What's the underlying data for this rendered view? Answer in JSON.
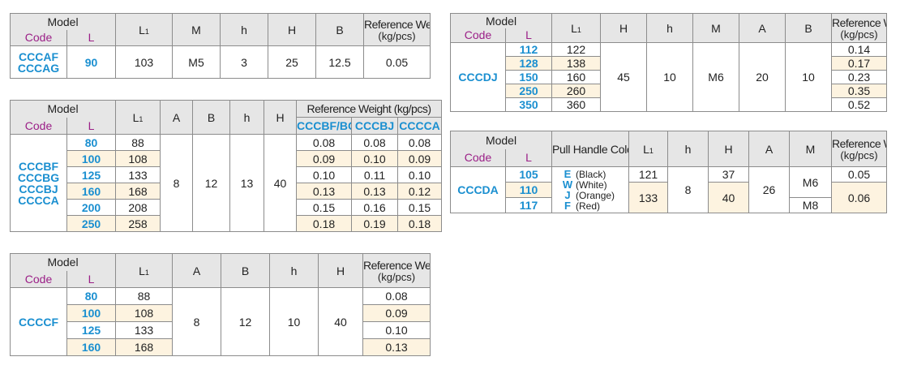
{
  "labels": {
    "model": "Model",
    "code": "Code",
    "l": "L",
    "l1": "L",
    "l1_sub": "1",
    "ref_weight": "Reference Weight",
    "unit": "(kg/pcs)",
    "ref_weight_unit_combined": "Reference Weight (kg/pcs)",
    "pull_handle_colors": "Pull Handle Colors"
  },
  "table1": {
    "headers": [
      "M",
      "h",
      "H",
      "B"
    ],
    "code": [
      "CCCAF",
      "CCCAG"
    ],
    "row": {
      "L": "90",
      "L1": "103",
      "M": "M5",
      "h": "3",
      "H": "25",
      "B": "12.5",
      "weight": "0.05"
    }
  },
  "table2": {
    "headers": [
      "A",
      "B",
      "h",
      "H"
    ],
    "weight_codes": [
      "CCCBF/BG",
      "CCCBJ",
      "CCCCA"
    ],
    "code": [
      "CCCBF",
      "CCCBG",
      "CCCBJ",
      "CCCCA"
    ],
    "shared": {
      "A": "8",
      "B": "12",
      "h": "13",
      "H": "40"
    },
    "rows": [
      {
        "L": "80",
        "L1": "88",
        "w": [
          "0.08",
          "0.08",
          "0.08"
        ]
      },
      {
        "L": "100",
        "L1": "108",
        "w": [
          "0.09",
          "0.10",
          "0.09"
        ]
      },
      {
        "L": "125",
        "L1": "133",
        "w": [
          "0.10",
          "0.11",
          "0.10"
        ]
      },
      {
        "L": "160",
        "L1": "168",
        "w": [
          "0.13",
          "0.13",
          "0.12"
        ]
      },
      {
        "L": "200",
        "L1": "208",
        "w": [
          "0.15",
          "0.16",
          "0.15"
        ]
      },
      {
        "L": "250",
        "L1": "258",
        "w": [
          "0.18",
          "0.19",
          "0.18"
        ]
      }
    ]
  },
  "table3": {
    "headers": [
      "A",
      "B",
      "h",
      "H"
    ],
    "code": "CCCCF",
    "shared": {
      "A": "8",
      "B": "12",
      "h": "10",
      "H": "40"
    },
    "rows": [
      {
        "L": "80",
        "L1": "88",
        "w": "0.08"
      },
      {
        "L": "100",
        "L1": "108",
        "w": "0.09"
      },
      {
        "L": "125",
        "L1": "133",
        "w": "0.10"
      },
      {
        "L": "160",
        "L1": "168",
        "w": "0.13"
      }
    ]
  },
  "table4": {
    "headers": [
      "H",
      "h",
      "M",
      "A",
      "B"
    ],
    "code": "CCCDJ",
    "shared": {
      "H": "45",
      "h": "10",
      "M": "M6",
      "A": "20",
      "B": "10"
    },
    "rows": [
      {
        "L": "112",
        "L1": "122",
        "w": "0.14"
      },
      {
        "L": "128",
        "L1": "138",
        "w": "0.17"
      },
      {
        "L": "150",
        "L1": "160",
        "w": "0.23"
      },
      {
        "L": "250",
        "L1": "260",
        "w": "0.35"
      },
      {
        "L": "350",
        "L1": "360",
        "w": "0.52"
      }
    ]
  },
  "table5": {
    "headers": [
      "h",
      "H",
      "A",
      "M"
    ],
    "code": "CCCDA",
    "colors": [
      {
        "code": "E",
        "name": "(Black)"
      },
      {
        "code": "W",
        "name": "(White)"
      },
      {
        "code": "J",
        "name": "(Orange)"
      },
      {
        "code": "F",
        "name": "(Red)"
      }
    ],
    "L": [
      "105",
      "110",
      "117"
    ],
    "L1": [
      "121",
      "133"
    ],
    "h": "8",
    "H": [
      "37",
      "40"
    ],
    "A": "26",
    "M": [
      "M6",
      "M8"
    ],
    "w": [
      "0.05",
      "0.06"
    ]
  }
}
